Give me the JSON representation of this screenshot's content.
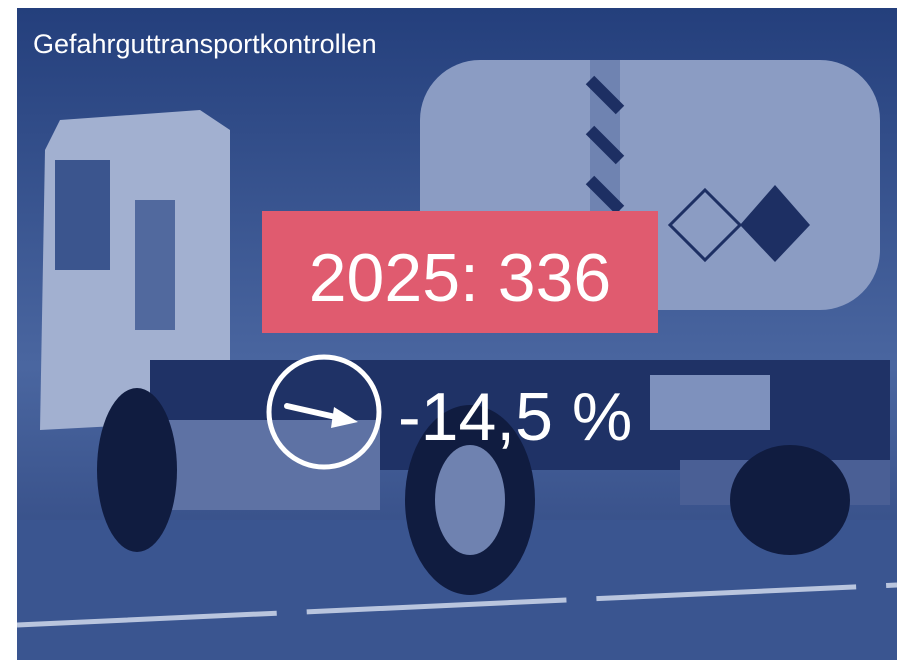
{
  "title": "Gefahrguttransportkontrollen",
  "kpi": "2025: 336",
  "change": "-14,5 %"
}
